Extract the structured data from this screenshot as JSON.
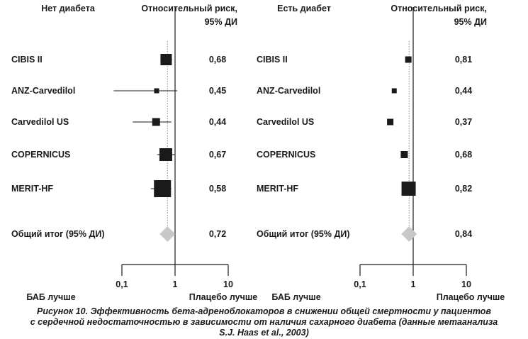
{
  "chart_data": [
    {
      "type": "forest",
      "title": "Нет диабета",
      "value_header": [
        "Относительный риск,",
        "95% ДИ"
      ],
      "x_scale": "log",
      "xlim": [
        0.1,
        10
      ],
      "ticks": [
        {
          "value": 0.1,
          "label": "0,1"
        },
        {
          "value": 1,
          "label": "1"
        },
        {
          "value": 10,
          "label": "10"
        }
      ],
      "left_label": "БАБ лучше",
      "right_label": "Плацебо лучше",
      "studies": [
        {
          "name": "CIBIS II",
          "value": 0.68,
          "value_label": "0,68",
          "ci": [
            0.53,
            0.88
          ]
        },
        {
          "name": "ANZ-Carvedilol",
          "value": 0.45,
          "value_label": "0,45",
          "ci": [
            0.07,
            1.1
          ]
        },
        {
          "name": "Carvedilol US",
          "value": 0.44,
          "value_label": "0,44",
          "ci": [
            0.16,
            0.85
          ]
        },
        {
          "name": "COPERNICUS",
          "value": 0.67,
          "value_label": "0,67",
          "ci": [
            0.46,
            0.98
          ]
        },
        {
          "name": "MERIT-HF",
          "value": 0.58,
          "value_label": "0,58",
          "ci": [
            0.35,
            0.85
          ]
        }
      ],
      "total": {
        "name": "Общий итог (95% ДИ)",
        "value": 0.72,
        "value_label": "0,72"
      }
    },
    {
      "type": "forest",
      "title": "Есть диабет",
      "value_header": [
        "Относительный риск,",
        "95% ДИ"
      ],
      "x_scale": "log",
      "xlim": [
        0.1,
        10
      ],
      "ticks": [
        {
          "value": 0.1,
          "label": "0,1"
        },
        {
          "value": 1,
          "label": "1"
        },
        {
          "value": 10,
          "label": "10"
        }
      ],
      "left_label": "БАБ лучше",
      "right_label": "Плацебо лучше",
      "studies": [
        {
          "name": "CIBIS II",
          "value": 0.81,
          "value_label": "0,81"
        },
        {
          "name": "ANZ-Carvedilol",
          "value": 0.44,
          "value_label": "0,44"
        },
        {
          "name": "Carvedilol US",
          "value": 0.37,
          "value_label": "0,37"
        },
        {
          "name": "COPERNICUS",
          "value": 0.68,
          "value_label": "0,68"
        },
        {
          "name": "MERIT-HF",
          "value": 0.82,
          "value_label": "0,82"
        }
      ],
      "total": {
        "name": "Общий итог (95% ДИ)",
        "value": 0.84,
        "value_label": "0,84"
      }
    }
  ],
  "caption": [
    "Рисунок 10. Эффективность бета-адреноблокаторов в снижении общей смертности у пациентов",
    "с сердечной недостаточностью в зависимости от наличия сахарного диабета (данные метаанализа",
    "S.J. Haas et al., 2003)"
  ]
}
